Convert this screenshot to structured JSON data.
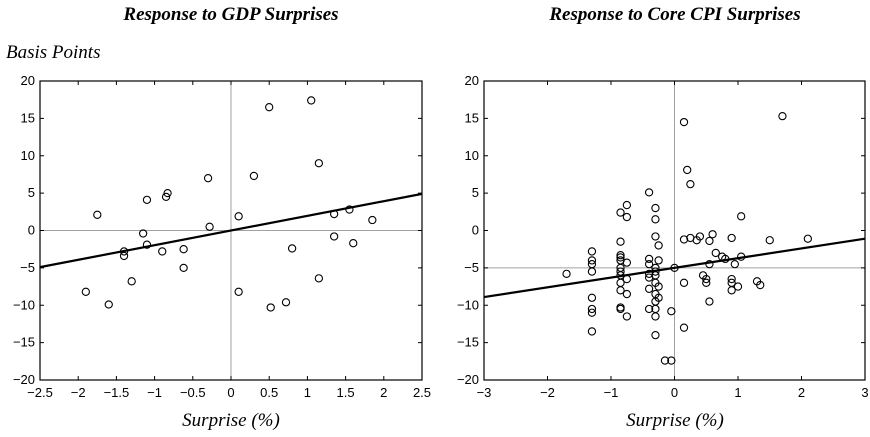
{
  "chart_data": [
    {
      "type": "scatter",
      "title": "Response to GDP Surprises",
      "ylabel": "Basis Points",
      "xlabel": "Surprise (%)",
      "xlim": [
        -2.5,
        2.5
      ],
      "ylim": [
        -20,
        20
      ],
      "xticks": [
        -2.5,
        -2,
        -1.5,
        -1,
        -0.5,
        0,
        0.5,
        1,
        1.5,
        2,
        2.5
      ],
      "yticks": [
        -20,
        -15,
        -10,
        -5,
        0,
        5,
        10,
        15,
        20
      ],
      "xtick_labels": [
        "−2.5",
        "−2",
        "−1.5",
        "−1",
        "−0.5",
        "0",
        "0.5",
        "1",
        "1.5",
        "2",
        "2.5"
      ],
      "ytick_labels": [
        "−20",
        "−15",
        "−10",
        "−5",
        "0",
        "5",
        "10",
        "15",
        "20"
      ],
      "reference_lines": {
        "x": 0,
        "y": 0
      },
      "fit_line": {
        "x": [
          -2.5,
          2.5
        ],
        "y": [
          -4.9,
          4.9
        ]
      },
      "points": [
        [
          -1.9,
          -8.2
        ],
        [
          -1.75,
          2.1
        ],
        [
          -1.6,
          -9.9
        ],
        [
          -1.4,
          -2.8
        ],
        [
          -1.4,
          -3.4
        ],
        [
          -1.3,
          -6.8
        ],
        [
          -1.15,
          -0.4
        ],
        [
          -1.1,
          4.1
        ],
        [
          -1.1,
          -1.9
        ],
        [
          -0.9,
          -2.8
        ],
        [
          -0.85,
          4.5
        ],
        [
          -0.83,
          5.0
        ],
        [
          -0.62,
          -2.5
        ],
        [
          -0.62,
          -5.0
        ],
        [
          -0.3,
          7.0
        ],
        [
          -0.28,
          0.5
        ],
        [
          0.1,
          1.9
        ],
        [
          0.1,
          -8.2
        ],
        [
          0.3,
          7.3
        ],
        [
          0.5,
          16.5
        ],
        [
          0.52,
          -10.3
        ],
        [
          0.72,
          -9.6
        ],
        [
          0.8,
          -2.4
        ],
        [
          1.05,
          17.4
        ],
        [
          1.15,
          9.0
        ],
        [
          1.15,
          -6.4
        ],
        [
          1.35,
          2.2
        ],
        [
          1.35,
          -0.8
        ],
        [
          1.55,
          2.8
        ],
        [
          1.6,
          -1.7
        ],
        [
          1.85,
          1.4
        ]
      ]
    },
    {
      "type": "scatter",
      "title": "Response to Core CPI Surprises",
      "xlabel": "Surprise (%)",
      "xlim": [
        -3,
        3
      ],
      "ylim": [
        -20,
        20
      ],
      "xticks": [
        -3,
        -2,
        -1,
        0,
        1,
        2,
        3
      ],
      "yticks": [
        -20,
        -15,
        -10,
        -5,
        0,
        5,
        10,
        15,
        20
      ],
      "xtick_labels": [
        "−3",
        "−2",
        "−1",
        "0",
        "1",
        "2",
        "3"
      ],
      "ytick_labels": [
        "−20",
        "−15",
        "−10",
        "−5",
        "0",
        "5",
        "10",
        "15",
        "20"
      ],
      "reference_lines": {
        "x": 0,
        "y": -5
      },
      "fit_line": {
        "x": [
          -3,
          3
        ],
        "y": [
          -8.9,
          -1.1
        ]
      },
      "points": [
        [
          -1.7,
          -5.8
        ],
        [
          -1.3,
          -2.8
        ],
        [
          -1.3,
          -4.0
        ],
        [
          -1.3,
          -4.5
        ],
        [
          -1.3,
          -5.5
        ],
        [
          -1.3,
          -9.0
        ],
        [
          -1.3,
          -10.5
        ],
        [
          -1.3,
          -11.0
        ],
        [
          -1.3,
          -13.5
        ],
        [
          -0.85,
          2.4
        ],
        [
          -0.85,
          -1.5
        ],
        [
          -0.85,
          -3.3
        ],
        [
          -0.85,
          -3.6
        ],
        [
          -0.85,
          -4.0
        ],
        [
          -0.85,
          -5.0
        ],
        [
          -0.85,
          -5.5
        ],
        [
          -0.85,
          -6.0
        ],
        [
          -0.85,
          -7.0
        ],
        [
          -0.85,
          -8.0
        ],
        [
          -0.85,
          -10.3
        ],
        [
          -0.85,
          -10.5
        ],
        [
          -0.75,
          3.4
        ],
        [
          -0.75,
          1.8
        ],
        [
          -0.75,
          -4.3
        ],
        [
          -0.75,
          -6.5
        ],
        [
          -0.75,
          -8.5
        ],
        [
          -0.75,
          -11.5
        ],
        [
          -0.4,
          5.1
        ],
        [
          -0.4,
          -3.8
        ],
        [
          -0.4,
          -4.5
        ],
        [
          -0.4,
          -5.8
        ],
        [
          -0.4,
          -6.3
        ],
        [
          -0.4,
          -7.8
        ],
        [
          -0.4,
          -10.5
        ],
        [
          -0.3,
          3.0
        ],
        [
          -0.3,
          1.5
        ],
        [
          -0.3,
          -0.8
        ],
        [
          -0.3,
          -5.0
        ],
        [
          -0.3,
          -5.5
        ],
        [
          -0.3,
          -6.0
        ],
        [
          -0.3,
          -7.0
        ],
        [
          -0.3,
          -8.5
        ],
        [
          -0.3,
          -9.5
        ],
        [
          -0.3,
          -10.5
        ],
        [
          -0.3,
          -11.5
        ],
        [
          -0.3,
          -14.0
        ],
        [
          -0.25,
          -2.0
        ],
        [
          -0.25,
          -4.0
        ],
        [
          -0.25,
          -7.5
        ],
        [
          -0.25,
          -9.0
        ],
        [
          -0.05,
          -10.8
        ],
        [
          -0.05,
          -17.4
        ],
        [
          -0.15,
          -17.4
        ],
        [
          0.0,
          -5.0
        ],
        [
          0.15,
          14.5
        ],
        [
          0.2,
          8.1
        ],
        [
          0.25,
          6.2
        ],
        [
          0.15,
          -1.2
        ],
        [
          0.25,
          -1.0
        ],
        [
          0.35,
          -1.3
        ],
        [
          0.4,
          -0.8
        ],
        [
          0.15,
          -7.0
        ],
        [
          0.15,
          -13.0
        ],
        [
          0.45,
          -6.0
        ],
        [
          0.5,
          -6.5
        ],
        [
          0.5,
          -7.0
        ],
        [
          0.55,
          -4.5
        ],
        [
          0.55,
          -9.5
        ],
        [
          0.55,
          -1.4
        ],
        [
          0.6,
          -0.5
        ],
        [
          0.65,
          -3.0
        ],
        [
          0.75,
          -3.5
        ],
        [
          0.8,
          -3.8
        ],
        [
          0.9,
          -1.0
        ],
        [
          0.9,
          -6.5
        ],
        [
          0.9,
          -7.0
        ],
        [
          0.9,
          -8.0
        ],
        [
          0.95,
          -4.5
        ],
        [
          1.0,
          -7.5
        ],
        [
          1.05,
          1.9
        ],
        [
          1.05,
          -3.5
        ],
        [
          1.3,
          -6.8
        ],
        [
          1.35,
          -7.3
        ],
        [
          1.5,
          -1.3
        ],
        [
          1.7,
          15.3
        ],
        [
          2.1,
          -1.1
        ]
      ]
    }
  ]
}
